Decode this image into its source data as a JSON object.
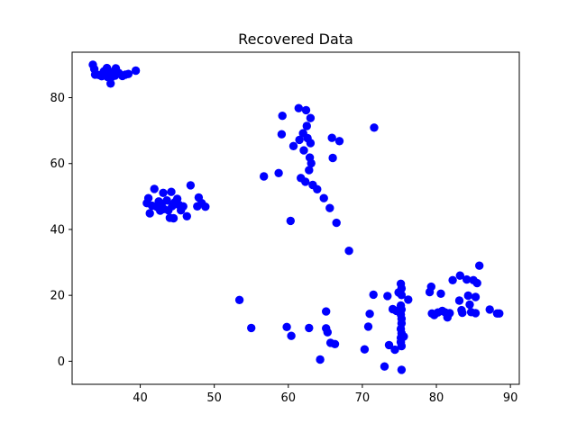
{
  "chart_data": {
    "type": "scatter",
    "title": "Recovered Data",
    "xlabel": "",
    "ylabel": "",
    "xlim": [
      30.8,
      91.2
    ],
    "ylim": [
      -7.0,
      93.8
    ],
    "xticks": [
      40,
      50,
      60,
      70,
      80,
      90
    ],
    "yticks": [
      0,
      20,
      40,
      60,
      80
    ],
    "grid": false,
    "marker_color": "#0000ff",
    "series": [
      {
        "points": [
          [
            33.6,
            90.0
          ],
          [
            33.8,
            88.7
          ],
          [
            33.9,
            87.0
          ],
          [
            34.4,
            86.9
          ],
          [
            34.8,
            86.5
          ],
          [
            35.1,
            88.0
          ],
          [
            35.4,
            87.2
          ],
          [
            35.5,
            89.0
          ],
          [
            35.6,
            86.3
          ],
          [
            35.8,
            87.6
          ],
          [
            36.0,
            85.9
          ],
          [
            36.0,
            84.3
          ],
          [
            36.2,
            87.8
          ],
          [
            36.6,
            86.7
          ],
          [
            36.7,
            88.9
          ],
          [
            37.1,
            87.5
          ],
          [
            37.6,
            86.6
          ],
          [
            38.0,
            87.0
          ],
          [
            38.4,
            87.2
          ],
          [
            39.4,
            88.2
          ],
          [
            40.9,
            48.0
          ],
          [
            41.1,
            49.5
          ],
          [
            41.3,
            44.9
          ],
          [
            41.6,
            47.2
          ],
          [
            41.9,
            52.3
          ],
          [
            42.3,
            46.8
          ],
          [
            42.5,
            48.5
          ],
          [
            42.7,
            45.7
          ],
          [
            42.9,
            47.8
          ],
          [
            43.1,
            51.1
          ],
          [
            43.2,
            46.2
          ],
          [
            43.6,
            48.8
          ],
          [
            43.8,
            45.8
          ],
          [
            44.0,
            43.5
          ],
          [
            44.2,
            51.4
          ],
          [
            44.3,
            47.1
          ],
          [
            44.5,
            43.4
          ],
          [
            44.7,
            48.3
          ],
          [
            45.0,
            49.3
          ],
          [
            45.2,
            47.5
          ],
          [
            45.5,
            45.8
          ],
          [
            45.8,
            47.0
          ],
          [
            46.3,
            44.0
          ],
          [
            46.8,
            53.4
          ],
          [
            47.7,
            47.0
          ],
          [
            47.9,
            49.7
          ],
          [
            48.3,
            48.0
          ],
          [
            48.8,
            46.9
          ],
          [
            53.4,
            18.6
          ],
          [
            55.0,
            10.1
          ],
          [
            56.7,
            56.1
          ],
          [
            58.7,
            57.1
          ],
          [
            59.1,
            68.9
          ],
          [
            59.2,
            74.5
          ],
          [
            59.8,
            10.4
          ],
          [
            60.3,
            42.6
          ],
          [
            60.4,
            7.7
          ],
          [
            60.7,
            65.3
          ],
          [
            61.4,
            76.8
          ],
          [
            61.5,
            67.2
          ],
          [
            61.7,
            55.6
          ],
          [
            62.0,
            69.2
          ],
          [
            62.1,
            64.0
          ],
          [
            62.3,
            54.5
          ],
          [
            62.4,
            76.2
          ],
          [
            62.5,
            71.4
          ],
          [
            62.6,
            67.7
          ],
          [
            62.8,
            10.1
          ],
          [
            62.8,
            58.0
          ],
          [
            62.9,
            61.8
          ],
          [
            63.0,
            73.8
          ],
          [
            63.0,
            66.2
          ],
          [
            63.1,
            60.1
          ],
          [
            63.3,
            53.5
          ],
          [
            63.9,
            52.2
          ],
          [
            64.3,
            0.5
          ],
          [
            64.8,
            49.5
          ],
          [
            65.1,
            15.1
          ],
          [
            65.1,
            10.0
          ],
          [
            65.3,
            8.8
          ],
          [
            65.6,
            46.5
          ],
          [
            65.7,
            5.6
          ],
          [
            65.9,
            67.8
          ],
          [
            66.0,
            61.7
          ],
          [
            66.3,
            5.2
          ],
          [
            66.5,
            42.0
          ],
          [
            66.9,
            66.8
          ],
          [
            68.2,
            33.5
          ],
          [
            70.3,
            3.6
          ],
          [
            70.8,
            10.5
          ],
          [
            71.0,
            14.4
          ],
          [
            71.5,
            20.2
          ],
          [
            71.6,
            70.9
          ],
          [
            73.0,
            -1.6
          ],
          [
            73.4,
            19.8
          ],
          [
            73.6,
            4.9
          ],
          [
            74.1,
            15.8
          ],
          [
            74.4,
            3.5
          ],
          [
            74.6,
            15.3
          ],
          [
            74.9,
            20.9
          ],
          [
            75.2,
            23.5
          ],
          [
            75.3,
            22.1
          ],
          [
            75.3,
            20.1
          ],
          [
            75.2,
            16.9
          ],
          [
            75.3,
            15.7
          ],
          [
            75.2,
            14.2
          ],
          [
            75.3,
            12.9
          ],
          [
            75.3,
            11.5
          ],
          [
            75.2,
            9.8
          ],
          [
            75.3,
            8.5
          ],
          [
            75.2,
            7.1
          ],
          [
            75.2,
            5.8
          ],
          [
            75.3,
            4.6
          ],
          [
            75.3,
            -2.6
          ],
          [
            75.6,
            7.5
          ],
          [
            76.2,
            18.7
          ],
          [
            79.1,
            21.0
          ],
          [
            79.3,
            22.6
          ],
          [
            79.4,
            14.5
          ],
          [
            79.7,
            14.0
          ],
          [
            80.2,
            14.8
          ],
          [
            80.6,
            20.5
          ],
          [
            80.8,
            15.3
          ],
          [
            81.2,
            14.8
          ],
          [
            81.5,
            13.3
          ],
          [
            81.8,
            14.6
          ],
          [
            82.2,
            24.6
          ],
          [
            83.1,
            18.4
          ],
          [
            83.2,
            26.0
          ],
          [
            83.4,
            15.5
          ],
          [
            83.5,
            14.7
          ],
          [
            84.1,
            24.8
          ],
          [
            84.3,
            19.9
          ],
          [
            84.5,
            17.2
          ],
          [
            84.7,
            14.9
          ],
          [
            85.0,
            24.6
          ],
          [
            85.3,
            19.5
          ],
          [
            85.3,
            14.6
          ],
          [
            85.5,
            23.7
          ],
          [
            85.8,
            29.0
          ],
          [
            87.2,
            15.7
          ],
          [
            88.2,
            14.5
          ],
          [
            88.5,
            14.5
          ]
        ]
      }
    ]
  }
}
